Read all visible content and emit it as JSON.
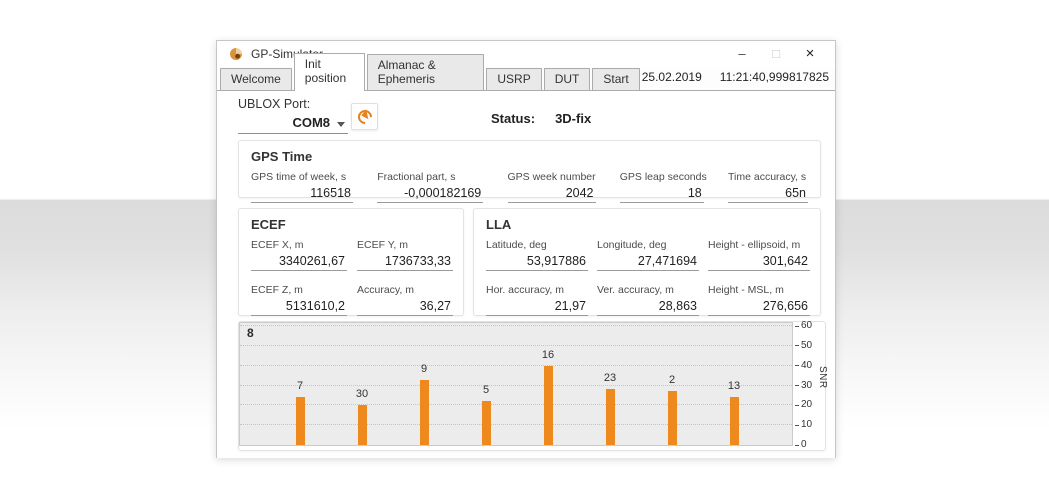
{
  "window": {
    "title": "GP-Simulator",
    "date": "25.02.2019",
    "time": "11:21:40,999817825"
  },
  "icons": {
    "app": "shell-logo",
    "minimize": "–",
    "maximize": "□",
    "close": "×",
    "refresh": "refresh-circular-arrow",
    "dropdown": "chevron-down"
  },
  "tabs": [
    {
      "label": "Welcome",
      "active": false
    },
    {
      "label": "Init position",
      "active": true
    },
    {
      "label": "Almanac & Ephemeris",
      "active": false
    },
    {
      "label": "USRP",
      "active": false
    },
    {
      "label": "DUT",
      "active": false
    },
    {
      "label": "Start",
      "active": false
    }
  ],
  "port": {
    "label": "UBLOX Port:",
    "value": "COM8"
  },
  "status": {
    "label": "Status:",
    "value": "3D-fix"
  },
  "gps_time": {
    "title": "GPS Time",
    "fields": [
      {
        "label": "GPS time of week, s",
        "value": "116518"
      },
      {
        "label": "Fractional part, s",
        "value": "-0,000182169"
      },
      {
        "label": "GPS week number",
        "value": "2042"
      },
      {
        "label": "GPS leap seconds",
        "value": "18"
      },
      {
        "label": "Time accuracy, s",
        "value": "65n"
      }
    ]
  },
  "ecef": {
    "title": "ECEF",
    "fields": [
      {
        "label": "ECEF X, m",
        "value": "3340261,67"
      },
      {
        "label": "ECEF Y, m",
        "value": "1736733,33"
      },
      {
        "label": "ECEF Z, m",
        "value": "5131610,2"
      },
      {
        "label": "Accuracy, m",
        "value": "36,27"
      }
    ]
  },
  "lla": {
    "title": "LLA",
    "fields": [
      {
        "label": "Latitude, deg",
        "value": "53,917886"
      },
      {
        "label": "Longitude, deg",
        "value": "27,471694"
      },
      {
        "label": "Height - ellipsoid, m",
        "value": "301,642"
      },
      {
        "label": "Hor. accuracy, m",
        "value": "21,97"
      },
      {
        "label": "Ver. accuracy, m",
        "value": "28,863"
      },
      {
        "label": "Height - MSL, m",
        "value": "276,656"
      }
    ]
  },
  "chart_data": {
    "type": "bar",
    "satellite_count": "8",
    "categories": [
      "7",
      "30",
      "9",
      "5",
      "16",
      "23",
      "2",
      "13"
    ],
    "values": [
      24,
      20,
      33,
      22,
      40,
      28,
      27,
      24
    ],
    "title": "",
    "xlabel": "",
    "ylabel": "SNR",
    "ylim": [
      0,
      60
    ],
    "yticks": [
      0,
      10,
      20,
      30,
      40,
      50,
      60
    ],
    "grid": true,
    "bar_color": "#ee8a1d",
    "axis_side": "right"
  }
}
